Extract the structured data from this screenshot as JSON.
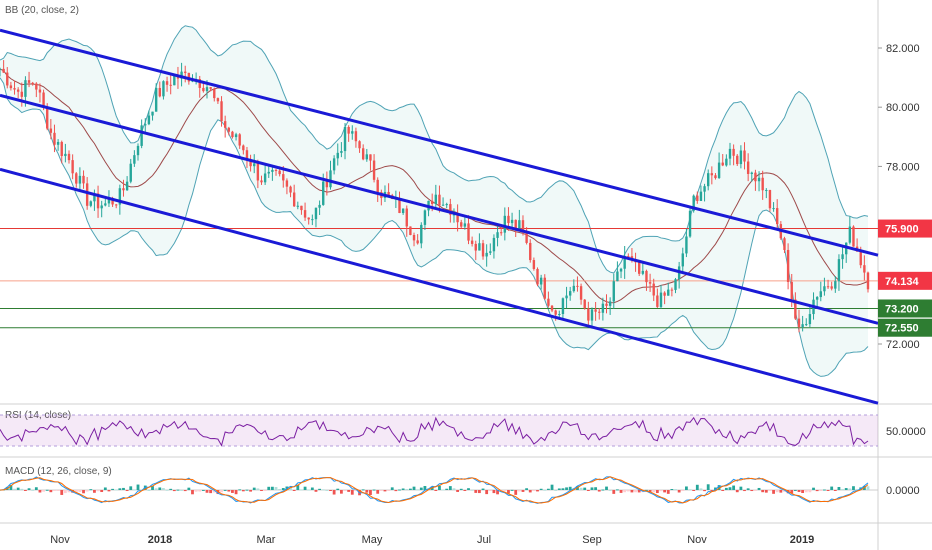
{
  "indicators": {
    "bb_label": "BB (20, close, 2)",
    "rsi_label": "RSI (14, close)",
    "macd_label": "MACD (12, 26, close, 9)"
  },
  "chart_data": {
    "type": "candlestick",
    "price_axis": {
      "ticks": [
        "82.000",
        "80.000",
        "78.000",
        "76.000",
        "72.000"
      ],
      "ylim": [
        69.5,
        83.5
      ]
    },
    "rsi_axis": {
      "ticks": [
        "50.0000"
      ]
    },
    "macd_axis": {
      "ticks": [
        "0.0000"
      ]
    },
    "x_labels": [
      "Nov",
      "2018",
      "Mar",
      "May",
      "Jul",
      "Sep",
      "Nov",
      "2019"
    ],
    "price_tags": [
      {
        "value": "75.900",
        "color": "#f23645",
        "text_color": "#ffffff"
      },
      {
        "value": "74.134",
        "color": "#f23645",
        "text_color": "#ffffff"
      },
      {
        "value": "73.200",
        "color": "#2e7d32",
        "text_color": "#ffffff"
      },
      {
        "value": "72.550",
        "color": "#2e7d32",
        "text_color": "#ffffff"
      }
    ],
    "horizontal_lines": [
      {
        "price": 75.9,
        "color": "#e53935"
      },
      {
        "price": 74.134,
        "color": "#f8a08a"
      },
      {
        "price": 73.2,
        "color": "#2e7d32"
      },
      {
        "price": 72.55,
        "color": "#2e7d32"
      }
    ],
    "channel_lines_price": [
      {
        "name": "upper",
        "x0": 0,
        "p0": 82.6,
        "x1": 1,
        "p1": 75.0
      },
      {
        "name": "middle",
        "x0": 0,
        "p0": 80.4,
        "x1": 1,
        "p1": 72.7
      },
      {
        "name": "lower",
        "x0": 0,
        "p0": 77.9,
        "x1": 1,
        "p1": 70.0
      }
    ],
    "price_path": [
      [
        0.0,
        81.3
      ],
      [
        0.02,
        80.5
      ],
      [
        0.04,
        80.9
      ],
      [
        0.06,
        79.0
      ],
      [
        0.08,
        78.2
      ],
      [
        0.1,
        76.9
      ],
      [
        0.12,
        76.7
      ],
      [
        0.14,
        77.0
      ],
      [
        0.16,
        79.0
      ],
      [
        0.18,
        80.4
      ],
      [
        0.2,
        81.0
      ],
      [
        0.22,
        81.1
      ],
      [
        0.24,
        80.7
      ],
      [
        0.26,
        79.3
      ],
      [
        0.28,
        78.6
      ],
      [
        0.3,
        77.6
      ],
      [
        0.32,
        77.6
      ],
      [
        0.34,
        76.9
      ],
      [
        0.36,
        76.1
      ],
      [
        0.38,
        77.9
      ],
      [
        0.4,
        79.2
      ],
      [
        0.42,
        78.4
      ],
      [
        0.44,
        77.1
      ],
      [
        0.46,
        76.6
      ],
      [
        0.48,
        75.6
      ],
      [
        0.5,
        77.1
      ],
      [
        0.52,
        76.6
      ],
      [
        0.54,
        75.7
      ],
      [
        0.56,
        75.1
      ],
      [
        0.58,
        76.2
      ],
      [
        0.6,
        75.9
      ],
      [
        0.62,
        74.2
      ],
      [
        0.64,
        73.1
      ],
      [
        0.66,
        74.0
      ],
      [
        0.68,
        72.9
      ],
      [
        0.7,
        73.2
      ],
      [
        0.72,
        75.0
      ],
      [
        0.74,
        74.2
      ],
      [
        0.76,
        73.4
      ],
      [
        0.78,
        74.1
      ],
      [
        0.8,
        77.0
      ],
      [
        0.82,
        77.6
      ],
      [
        0.84,
        78.6
      ],
      [
        0.86,
        78.1
      ],
      [
        0.88,
        77.3
      ],
      [
        0.9,
        75.6
      ],
      [
        0.92,
        72.3
      ],
      [
        0.94,
        73.7
      ],
      [
        0.96,
        74.2
      ],
      [
        0.98,
        75.8
      ],
      [
        1.0,
        74.13
      ]
    ]
  }
}
